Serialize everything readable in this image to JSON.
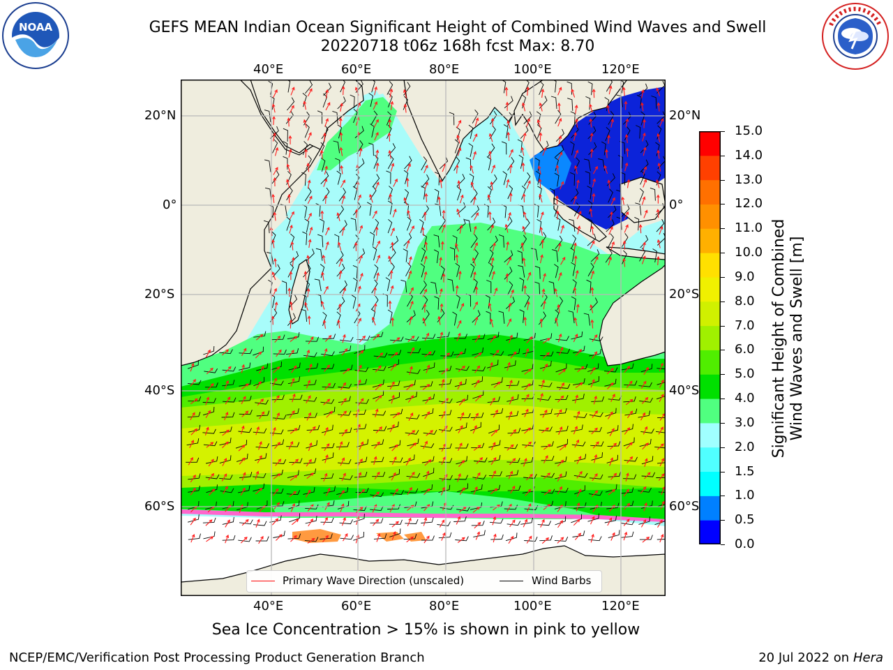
{
  "title": {
    "line1": "GEFS MEAN Indian Ocean Significant Height of Combined Wind Waves and Swell",
    "line2": "20220718 t06z 168h fcst   Max: 8.70"
  },
  "logos": {
    "noaa": {
      "text": "NOAA",
      "ring_text": "NATIONAL OCEANIC AND ATMOSPHERIC ADMINISTRATION",
      "bottom_text": "U.S. DEPARTMENT OF COMMERCE"
    },
    "nws": {
      "ring_text": "NATIONAL WEATHER SERVICE"
    }
  },
  "map": {
    "lon_ticks_top": [
      "40°E",
      "60°E",
      "80°E",
      "100°E",
      "120°E"
    ],
    "lon_ticks_bottom": [
      "40°E",
      "60°E",
      "80°E",
      "100°E",
      "120°E"
    ],
    "lat_ticks_left": [
      "20°N",
      "0°",
      "20°S",
      "40°S",
      "60°S"
    ],
    "lat_ticks_right": [
      "20°N",
      "0°",
      "20°S",
      "40°S",
      "60°S"
    ],
    "colors": {
      "land": "#efedde",
      "sea_ice_region": "#ffffff",
      "wave_arrow": "#ff1a1a",
      "wind_barb": "#000000",
      "grid": "#b8b8b8"
    }
  },
  "legend": {
    "wave_label": "Primary Wave Direction (unscaled)",
    "wind_label": "Wind Barbs",
    "wave_color": "#ff0000",
    "wind_color": "#000000"
  },
  "colorbar": {
    "label_line1": "Significant Height of Combined",
    "label_line2": "Wind Waves and Swell [m]",
    "tick_labels": [
      "15.0",
      "14.0",
      "13.0",
      "12.0",
      "11.0",
      "10.0",
      "9.0",
      "8.0",
      "7.0",
      "6.0",
      "5.0",
      "4.0",
      "3.0",
      "2.0",
      "1.5",
      "1.0",
      "0.5",
      "0.0"
    ],
    "colors_bottom_to_top": [
      "#0000ff",
      "#0080ff",
      "#00ffff",
      "#50ffff",
      "#a0ffff",
      "#50ff80",
      "#00e000",
      "#50ee00",
      "#a0f000",
      "#d0f000",
      "#f0f000",
      "#ffe000",
      "#ffb000",
      "#ff9000",
      "#ff7000",
      "#ff4000",
      "#ff0000"
    ]
  },
  "footnote": "Sea Ice Concentration > 15% is shown in pink to yellow",
  "credit": {
    "left": "NCEP/EMC/Verification Post Processing Product Generation Branch",
    "right_prefix": "20 Jul 2022 on ",
    "right_host": "Hera"
  }
}
